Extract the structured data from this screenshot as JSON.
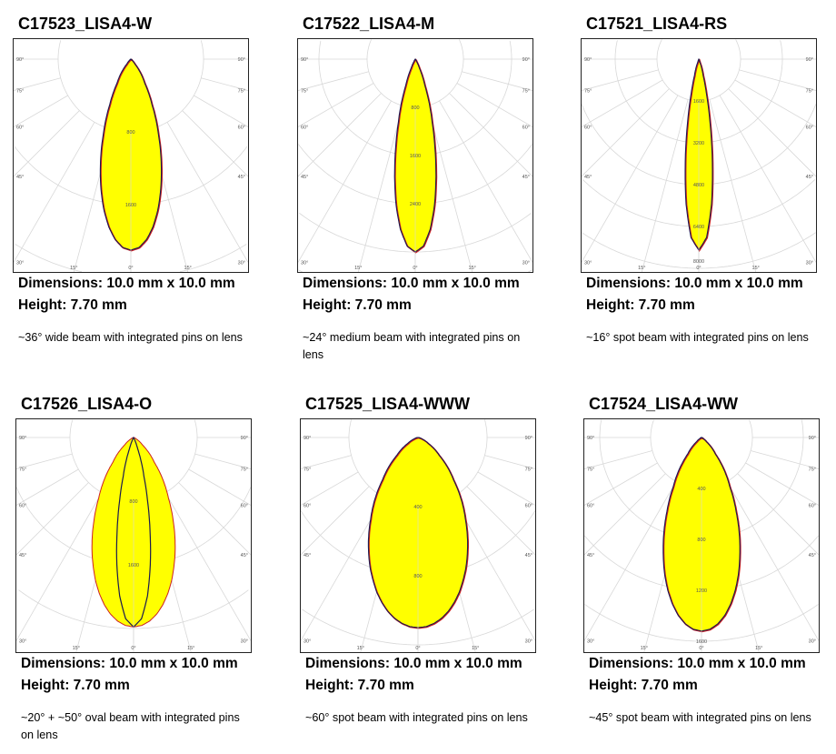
{
  "colors": {
    "fill": "#ffff00",
    "outline": "#1a1a50",
    "secondary": "#cc2020",
    "grid": "#d8d8d8"
  },
  "angle_labels": {
    "side": [
      "90°",
      "75°",
      "60°",
      "45°",
      "30°"
    ],
    "bottom": [
      "15°",
      "0°",
      "15°"
    ]
  },
  "products": [
    {
      "title": "C17523_LISA4-W",
      "dimensions": "Dimensions: 10.0 mm x 10.0 mm",
      "height": "Height: 7.70 mm",
      "description": "~36° wide beam with integrated pins on lens"
    },
    {
      "title": "C17522_LISA4-M",
      "dimensions": "Dimensions: 10.0 mm x 10.0 mm",
      "height": "Height: 7.70 mm",
      "description": "~24° medium beam with integrated pins on lens"
    },
    {
      "title": "C17521_LISA4-RS",
      "dimensions": "Dimensions: 10.0 mm x 10.0 mm",
      "height": "Height: 7.70 mm",
      "description": "~16° spot beam with integrated pins on lens"
    },
    {
      "title": "C17526_LISA4-O",
      "dimensions": "Dimensions: 10.0 mm x 10.0 mm",
      "height": "Height: 7.70 mm",
      "description": "~20° + ~50° oval beam with integrated pins on lens"
    },
    {
      "title": "C17525_LISA4-WWW",
      "dimensions": "Dimensions: 10.0 mm x 10.0 mm",
      "height": "Height: 7.70 mm",
      "description": "~60° spot beam with integrated pins on lens"
    },
    {
      "title": "C17524_LISA4-WW",
      "dimensions": "Dimensions: 10.0 mm x 10.0 mm",
      "height": "Height: 7.70 mm",
      "description": "~45° spot beam with integrated pins on lens"
    }
  ],
  "chart_data": [
    {
      "type": "polar",
      "ring_step": 800,
      "ring_labels": [
        "800",
        "1600"
      ],
      "angles": [
        0,
        2.5,
        5,
        7.5,
        10,
        12.5,
        15,
        20,
        25,
        30,
        40,
        50,
        60,
        70,
        80,
        90
      ],
      "series": [
        {
          "values": [
            2100,
            2072,
            1990,
            1860,
            1695,
            1503,
            1298,
            892,
            550,
            306,
            68,
            10,
            1,
            0,
            0,
            0
          ]
        }
      ]
    },
    {
      "type": "polar",
      "ring_step": 800,
      "ring_labels": [
        "800",
        "1600",
        "2400"
      ],
      "angles": [
        0,
        2.5,
        5,
        7.5,
        10,
        12.5,
        15,
        20,
        25,
        30,
        40,
        50,
        60,
        70,
        80,
        90
      ],
      "series": [
        {
          "values": [
            3200,
            3104,
            2835,
            2442,
            1978,
            1508,
            1085,
            467,
            158,
            42,
            2,
            0,
            0,
            0,
            0,
            0
          ]
        }
      ]
    },
    {
      "type": "polar",
      "ring_step": 1600,
      "ring_labels": [
        "1600",
        "3200",
        "4800",
        "6400",
        "8000"
      ],
      "angles": [
        0,
        2.5,
        5,
        7.5,
        10,
        12.5,
        15,
        20,
        25,
        30,
        40,
        50,
        60,
        70,
        80,
        90
      ],
      "series": [
        {
          "values": [
            7300,
            6825,
            5570,
            3971,
            2475,
            1345,
            636,
            96,
            9,
            0,
            0,
            0,
            0,
            0,
            0,
            0
          ]
        }
      ]
    },
    {
      "type": "polar",
      "ring_step": 800,
      "ring_labels": [
        "800",
        "1600"
      ],
      "angles": [
        0,
        2.5,
        5,
        7.5,
        10,
        12.5,
        15,
        20,
        25,
        30,
        40,
        50,
        60,
        70,
        80,
        90
      ],
      "series": [
        {
          "values": [
            2380,
            2364,
            2315,
            2237,
            2130,
            2000,
            1854,
            1528,
            1190,
            876,
            404,
            149,
            44,
            10,
            2,
            0
          ]
        },
        {
          "values": [
            2380,
            2280,
            2000,
            1611,
            1190,
            807,
            500,
            149,
            31,
            5,
            0,
            0,
            0,
            0,
            0,
            0
          ]
        }
      ]
    },
    {
      "type": "polar",
      "ring_step": 400,
      "ring_labels": [
        "400",
        "800"
      ],
      "angles": [
        0,
        2.5,
        5,
        7.5,
        10,
        12.5,
        15,
        20,
        25,
        30,
        40,
        50,
        60,
        70,
        80,
        90
      ],
      "series": [
        {
          "values": [
            1100,
            1095,
            1079,
            1054,
            1019,
            975,
            925,
            808,
            680,
            550,
            320,
            160,
            69,
            25,
            8,
            0
          ]
        }
      ]
    },
    {
      "type": "polar",
      "ring_step": 400,
      "ring_labels": [
        "400",
        "800",
        "1200",
        "1600"
      ],
      "angles": [
        0,
        2.5,
        5,
        7.5,
        10,
        12.5,
        15,
        20,
        25,
        30,
        40,
        50,
        60,
        70,
        80,
        90
      ],
      "series": [
        {
          "values": [
            1520,
            1507,
            1469,
            1408,
            1325,
            1227,
            1117,
            879,
            646,
            443,
            170,
            50,
            11,
            2,
            0,
            0
          ]
        }
      ]
    }
  ]
}
